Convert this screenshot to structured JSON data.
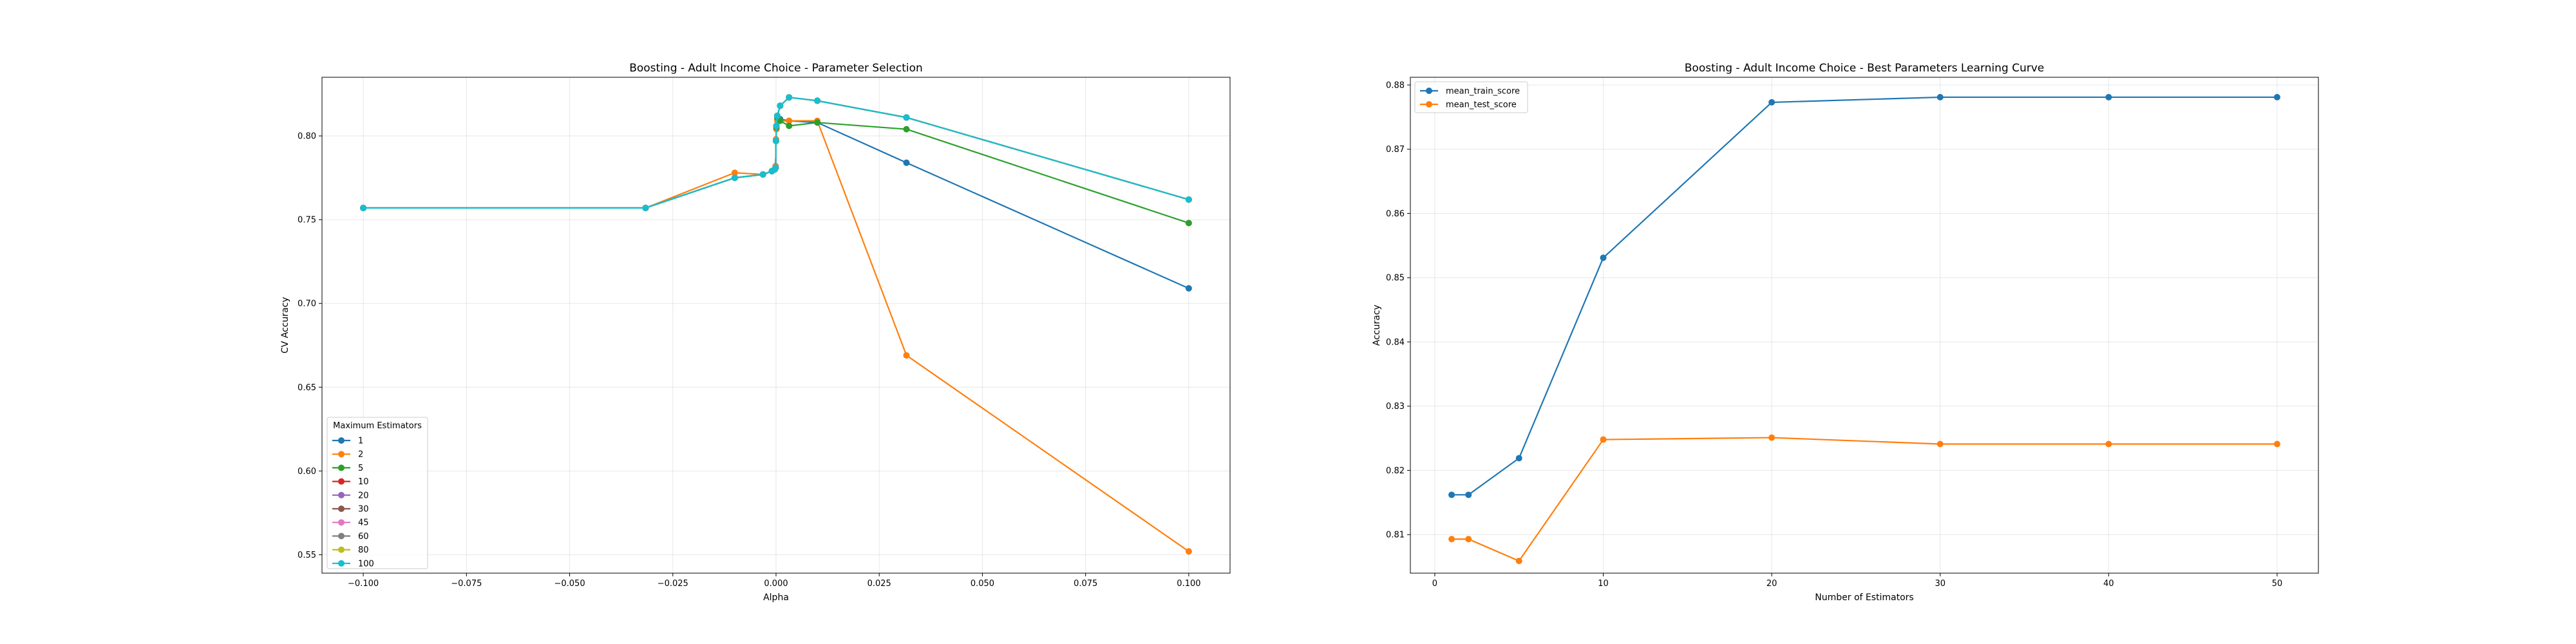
{
  "chart_data": [
    {
      "type": "line",
      "title": "Boosting - Adult Income Choice - Parameter Selection",
      "xlabel": "Alpha",
      "ylabel": "CV Accuracy",
      "xlim": [
        -0.11,
        0.11
      ],
      "ylim": [
        0.539,
        0.835
      ],
      "xticks": [
        -0.1,
        -0.075,
        -0.05,
        -0.025,
        0.0,
        0.025,
        0.05,
        0.075,
        0.1
      ],
      "xtick_labels": [
        "−0.100",
        "−0.075",
        "−0.050",
        "−0.025",
        "0.000",
        "0.025",
        "0.050",
        "0.075",
        "0.100"
      ],
      "yticks": [
        0.55,
        0.6,
        0.65,
        0.7,
        0.75,
        0.8
      ],
      "ytick_labels": [
        "0.55",
        "0.60",
        "0.65",
        "0.70",
        "0.75",
        "0.80"
      ],
      "grid": true,
      "legend": {
        "title": "Maximum Estimators",
        "position": "lower-left"
      },
      "x": [
        -0.1,
        -0.0316,
        -0.01,
        -0.00316,
        -0.001,
        -0.000316,
        -0.0001,
        0.0,
        0.0001,
        0.000316,
        0.001,
        0.00316,
        0.01,
        0.0316,
        0.1
      ],
      "series": [
        {
          "name": "1",
          "color": "#1f77b4",
          "values": [
            0.757,
            0.757,
            0.775,
            0.777,
            0.779,
            0.78,
            0.781,
            0.797,
            0.805,
            0.81,
            0.81,
            0.809,
            0.808,
            0.784,
            0.709
          ]
        },
        {
          "name": "2",
          "color": "#ff7f0e",
          "values": [
            0.757,
            0.757,
            0.778,
            0.777,
            0.779,
            0.78,
            0.782,
            0.798,
            0.804,
            0.809,
            0.809,
            0.809,
            0.809,
            0.669,
            0.552
          ]
        },
        {
          "name": "5",
          "color": "#2ca02c",
          "values": [
            0.757,
            0.757,
            0.775,
            0.777,
            0.779,
            0.78,
            0.781,
            0.797,
            0.805,
            0.811,
            0.809,
            0.806,
            0.808,
            0.804,
            0.748
          ]
        },
        {
          "name": "10",
          "color": "#d62728",
          "values": [
            0.757,
            0.757,
            0.775,
            0.777,
            0.779,
            0.78,
            0.781,
            0.797,
            0.806,
            0.812,
            0.818,
            0.823,
            0.821,
            0.811,
            0.762
          ]
        },
        {
          "name": "20",
          "color": "#9467bd",
          "values": [
            0.757,
            0.757,
            0.775,
            0.777,
            0.779,
            0.78,
            0.781,
            0.797,
            0.806,
            0.812,
            0.818,
            0.823,
            0.821,
            0.811,
            0.762
          ]
        },
        {
          "name": "30",
          "color": "#8c564b",
          "values": [
            0.757,
            0.757,
            0.775,
            0.777,
            0.779,
            0.78,
            0.781,
            0.797,
            0.806,
            0.812,
            0.818,
            0.823,
            0.821,
            0.811,
            0.762
          ]
        },
        {
          "name": "45",
          "color": "#e377c2",
          "values": [
            0.757,
            0.757,
            0.775,
            0.777,
            0.779,
            0.78,
            0.781,
            0.797,
            0.806,
            0.812,
            0.818,
            0.823,
            0.821,
            0.811,
            0.762
          ]
        },
        {
          "name": "60",
          "color": "#7f7f7f",
          "values": [
            0.757,
            0.757,
            0.775,
            0.777,
            0.779,
            0.78,
            0.781,
            0.797,
            0.806,
            0.812,
            0.818,
            0.823,
            0.821,
            0.811,
            0.762
          ]
        },
        {
          "name": "80",
          "color": "#bcbd22",
          "values": [
            0.757,
            0.757,
            0.775,
            0.777,
            0.779,
            0.78,
            0.781,
            0.797,
            0.806,
            0.812,
            0.818,
            0.823,
            0.821,
            0.811,
            0.762
          ]
        },
        {
          "name": "100",
          "color": "#17becf",
          "values": [
            0.757,
            0.757,
            0.775,
            0.777,
            0.779,
            0.78,
            0.781,
            0.797,
            0.806,
            0.812,
            0.818,
            0.823,
            0.821,
            0.811,
            0.762
          ]
        }
      ]
    },
    {
      "type": "line",
      "title": "Boosting - Adult Income Choice - Best Parameters Learning Curve",
      "xlabel": "Number of Estimators",
      "ylabel": "Accuracy",
      "xlim": [
        -1.45,
        52.45
      ],
      "ylim": [
        0.804,
        0.8812
      ],
      "xticks": [
        0,
        10,
        20,
        30,
        40,
        50
      ],
      "xtick_labels": [
        "0",
        "10",
        "20",
        "30",
        "40",
        "50"
      ],
      "yticks": [
        0.81,
        0.82,
        0.83,
        0.84,
        0.85,
        0.86,
        0.87,
        0.88
      ],
      "ytick_labels": [
        "0.81",
        "0.82",
        "0.83",
        "0.84",
        "0.85",
        "0.86",
        "0.87",
        "0.88"
      ],
      "grid": true,
      "legend": {
        "position": "top-left"
      },
      "x": [
        1,
        2,
        5,
        10,
        20,
        30,
        40,
        50
      ],
      "series": [
        {
          "name": "mean_train_score",
          "color": "#1f77b4",
          "values": [
            0.8162,
            0.8162,
            0.8219,
            0.8531,
            0.8773,
            0.8781,
            0.8781,
            0.8781
          ]
        },
        {
          "name": "mean_test_score",
          "color": "#ff7f0e",
          "values": [
            0.8093,
            0.8093,
            0.8059,
            0.8248,
            0.8251,
            0.8241,
            0.8241,
            0.8241
          ]
        }
      ]
    }
  ]
}
